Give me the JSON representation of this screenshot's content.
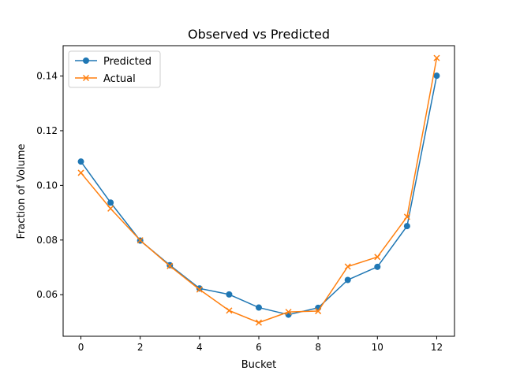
{
  "chart_data": {
    "type": "line",
    "title": "Observed vs Predicted",
    "xlabel": "Bucket",
    "ylabel": "Fraction of Volume",
    "x": [
      0,
      1,
      2,
      3,
      4,
      5,
      6,
      7,
      8,
      9,
      10,
      11,
      12
    ],
    "xlim": [
      -0.6,
      12.6
    ],
    "ylim": [
      0.0448,
      0.1511
    ],
    "xticks": [
      0,
      2,
      4,
      6,
      8,
      10,
      12
    ],
    "yticks": [
      0.06,
      0.08,
      0.1,
      0.12,
      0.14
    ],
    "ytick_labels": [
      "0.06",
      "0.08",
      "0.10",
      "0.12",
      "0.14"
    ],
    "grid": false,
    "legend_position": "upper-left",
    "series": [
      {
        "name": "Predicted",
        "color": "#1f77b4",
        "marker": "circle",
        "values": [
          0.1087,
          0.0937,
          0.0798,
          0.0708,
          0.0623,
          0.0601,
          0.0553,
          0.0527,
          0.0552,
          0.0654,
          0.0702,
          0.0851,
          0.1401
        ]
      },
      {
        "name": "Actual",
        "color": "#ff7f0e",
        "marker": "x",
        "values": [
          0.1046,
          0.0915,
          0.0799,
          0.0705,
          0.0619,
          0.0542,
          0.0498,
          0.0537,
          0.054,
          0.0703,
          0.0738,
          0.0885,
          0.1466
        ]
      }
    ]
  }
}
